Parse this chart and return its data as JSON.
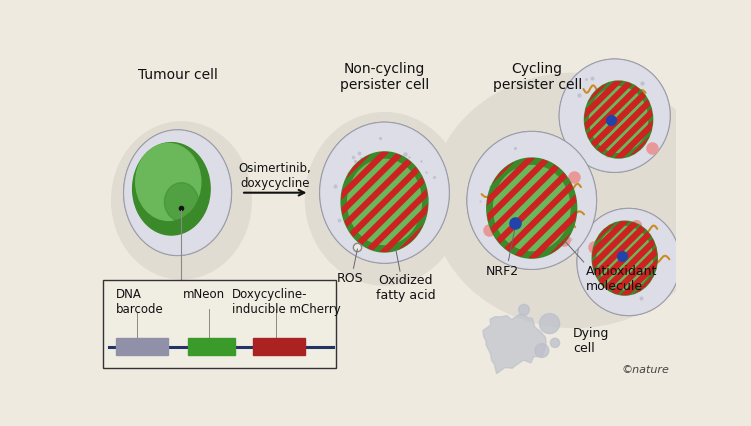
{
  "bg_color": "#eeeadf",
  "title_tumour": "Tumour cell",
  "title_noncycling": "Non-cycling\npersister cell",
  "title_cycling": "Cycling\npersister cell",
  "arrow_text": "Osimertinib,\ndoxycycline",
  "label_ros": "ROS",
  "label_oxidized": "Oxidized\nfatty acid",
  "label_nrf2": "NRF2",
  "label_antioxidant": "Antioxidant\nmolecule",
  "label_dying": "Dying\ncell",
  "label_dna": "DNA\nbarcode",
  "label_mneon": "mNeon",
  "label_doxy": "Doxycycline-\ninducible mCherry",
  "nature_text": "©nature",
  "cell_outer_color": "#c8c8d0",
  "cell_inner_color": "#dddde8",
  "nucleus_dark_green": "#3a8a2a",
  "nucleus_light_green": "#6ab85a",
  "nucleus_stripe_red": "#cc2222",
  "fatty_acid_color": "#cc8c22",
  "ros_dot_color": "#b8b8c8",
  "pink_dot_color": "#e89898",
  "blue_dot_color": "#2244aa",
  "dna_bar_gray": "#9090a8",
  "dna_bar_green": "#3a9a2a",
  "dna_bar_red": "#aa2222",
  "dna_line_color": "#223366",
  "box_border": "#333333",
  "box_fill": "#f0ede3",
  "dying_color": "#bcc0cc",
  "shadow_color": "#e0dcd2"
}
